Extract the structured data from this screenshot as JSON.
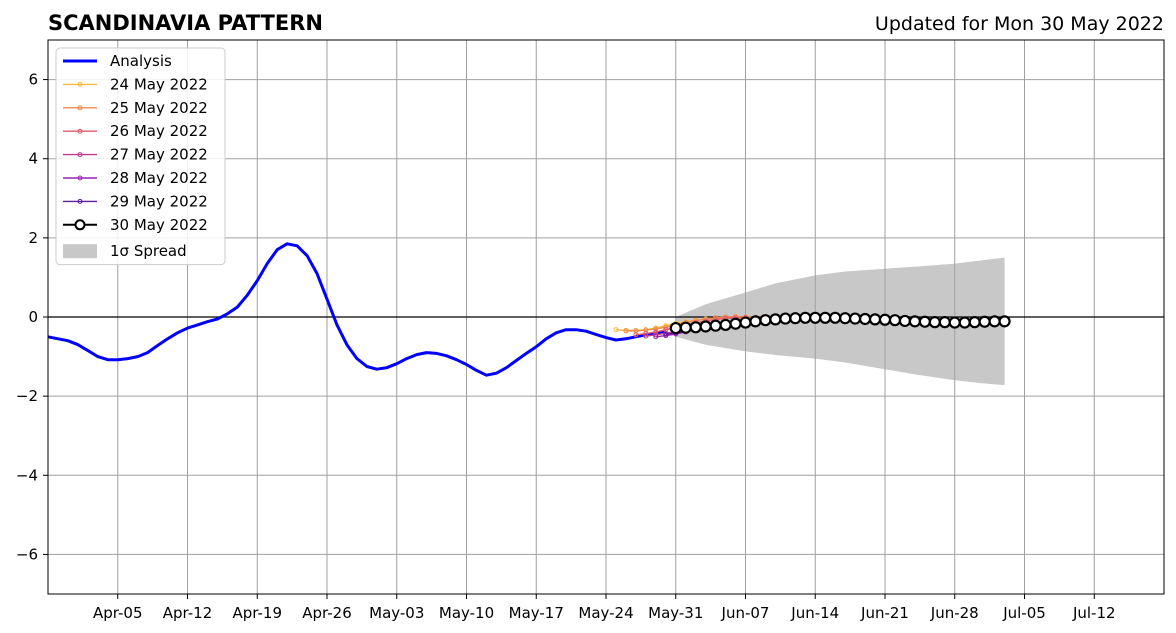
{
  "chart_data": {
    "type": "line",
    "title": "SCANDINAVIA PATTERN",
    "subtitle": "Updated for Mon 30 May 2022",
    "xlabel": "",
    "ylabel": "",
    "ylim": [
      -7,
      7
    ],
    "xlim": [
      "2022-03-29",
      "2022-07-19"
    ],
    "yticks": [
      -6,
      -4,
      -2,
      0,
      2,
      4,
      6
    ],
    "ytick_labels": [
      "−6",
      "−4",
      "−2",
      "0",
      "2",
      "4",
      "6"
    ],
    "xticks": [
      "2022-04-05",
      "2022-04-12",
      "2022-04-19",
      "2022-04-26",
      "2022-05-03",
      "2022-05-10",
      "2022-05-17",
      "2022-05-24",
      "2022-05-31",
      "2022-06-07",
      "2022-06-14",
      "2022-06-21",
      "2022-06-28",
      "2022-07-05",
      "2022-07-12"
    ],
    "xtick_labels": [
      "Apr-05",
      "Apr-12",
      "Apr-19",
      "Apr-26",
      "May-03",
      "May-10",
      "May-17",
      "May-24",
      "May-31",
      "Jun-07",
      "Jun-14",
      "Jun-21",
      "Jun-28",
      "Jul-05",
      "Jul-12"
    ],
    "grid": true,
    "legend_position": "top-left",
    "colors": {
      "analysis": "#0000ff",
      "grid": "#a0a0a0",
      "spread": "#c8c8c8",
      "zero_line": "#000000"
    },
    "analysis": {
      "name": "Analysis",
      "x": [
        "2022-03-29",
        "2022-03-30",
        "2022-03-31",
        "2022-04-01",
        "2022-04-02",
        "2022-04-03",
        "2022-04-04",
        "2022-04-05",
        "2022-04-06",
        "2022-04-07",
        "2022-04-08",
        "2022-04-09",
        "2022-04-10",
        "2022-04-11",
        "2022-04-12",
        "2022-04-13",
        "2022-04-14",
        "2022-04-15",
        "2022-04-16",
        "2022-04-17",
        "2022-04-18",
        "2022-04-19",
        "2022-04-20",
        "2022-04-21",
        "2022-04-22",
        "2022-04-23",
        "2022-04-24",
        "2022-04-25",
        "2022-04-26",
        "2022-04-27",
        "2022-04-28",
        "2022-04-29",
        "2022-04-30",
        "2022-05-01",
        "2022-05-02",
        "2022-05-03",
        "2022-05-04",
        "2022-05-05",
        "2022-05-06",
        "2022-05-07",
        "2022-05-08",
        "2022-05-09",
        "2022-05-10",
        "2022-05-11",
        "2022-05-12",
        "2022-05-13",
        "2022-05-14",
        "2022-05-15",
        "2022-05-16",
        "2022-05-17",
        "2022-05-18",
        "2022-05-19",
        "2022-05-20",
        "2022-05-21",
        "2022-05-22",
        "2022-05-23",
        "2022-05-24",
        "2022-05-25",
        "2022-05-26",
        "2022-05-27",
        "2022-05-28",
        "2022-05-29",
        "2022-05-30"
      ],
      "values": [
        -0.5,
        -0.55,
        -0.6,
        -0.7,
        -0.85,
        -1.0,
        -1.08,
        -1.08,
        -1.05,
        -1.0,
        -0.9,
        -0.72,
        -0.55,
        -0.4,
        -0.28,
        -0.2,
        -0.12,
        -0.05,
        0.08,
        0.25,
        0.55,
        0.92,
        1.35,
        1.7,
        1.85,
        1.8,
        1.55,
        1.1,
        0.45,
        -0.2,
        -0.7,
        -1.05,
        -1.25,
        -1.32,
        -1.28,
        -1.18,
        -1.05,
        -0.95,
        -0.9,
        -0.92,
        -0.98,
        -1.08,
        -1.2,
        -1.35,
        -1.47,
        -1.42,
        -1.28,
        -1.1,
        -0.92,
        -0.75,
        -0.55,
        -0.4,
        -0.32,
        -0.32,
        -0.36,
        -0.44,
        -0.52,
        -0.58,
        -0.55,
        -0.5,
        -0.45,
        -0.4,
        -0.38
      ]
    },
    "series": [
      {
        "name": "24 May 2022",
        "color": "#f6b93b",
        "x": [
          "2022-05-25",
          "2022-05-26",
          "2022-05-27",
          "2022-05-28",
          "2022-05-29",
          "2022-05-30",
          "2022-05-31",
          "2022-06-01",
          "2022-06-02",
          "2022-06-03",
          "2022-06-04",
          "2022-06-05",
          "2022-06-06",
          "2022-06-07",
          "2022-06-08",
          "2022-06-09",
          "2022-06-10",
          "2022-06-11",
          "2022-06-12",
          "2022-06-13",
          "2022-06-14",
          "2022-06-15",
          "2022-06-16",
          "2022-06-17",
          "2022-06-18",
          "2022-06-19",
          "2022-06-20",
          "2022-06-21",
          "2022-06-22",
          "2022-06-23",
          "2022-06-24",
          "2022-06-25",
          "2022-06-26",
          "2022-06-27",
          "2022-06-28"
        ],
        "values": [
          -0.32,
          -0.34,
          -0.34,
          -0.32,
          -0.28,
          -0.22,
          -0.16,
          -0.12,
          -0.08,
          -0.05,
          -0.03,
          -0.02,
          -0.02,
          -0.03,
          -0.04,
          -0.05,
          -0.06,
          -0.06,
          -0.06,
          -0.06,
          -0.06,
          -0.07,
          -0.08,
          -0.09,
          -0.1,
          -0.1,
          -0.11,
          -0.11,
          -0.12,
          -0.12,
          -0.13,
          -0.13,
          -0.13,
          -0.14,
          -0.14
        ]
      },
      {
        "name": "25 May 2022",
        "color": "#f08a4b",
        "x": [
          "2022-05-26",
          "2022-05-27",
          "2022-05-28",
          "2022-05-29",
          "2022-05-30",
          "2022-05-31",
          "2022-06-01",
          "2022-06-02",
          "2022-06-03",
          "2022-06-04",
          "2022-06-05",
          "2022-06-06",
          "2022-06-07",
          "2022-06-08",
          "2022-06-09",
          "2022-06-10",
          "2022-06-11",
          "2022-06-12",
          "2022-06-13",
          "2022-06-14",
          "2022-06-15",
          "2022-06-16",
          "2022-06-17",
          "2022-06-18",
          "2022-06-19",
          "2022-06-20",
          "2022-06-21",
          "2022-06-22",
          "2022-06-23",
          "2022-06-24",
          "2022-06-25",
          "2022-06-26",
          "2022-06-27",
          "2022-06-28",
          "2022-06-29"
        ],
        "values": [
          -0.35,
          -0.35,
          -0.33,
          -0.3,
          -0.26,
          -0.2,
          -0.14,
          -0.09,
          -0.05,
          -0.02,
          0.0,
          0.01,
          0.0,
          -0.01,
          -0.02,
          -0.03,
          -0.04,
          -0.04,
          -0.05,
          -0.05,
          -0.06,
          -0.07,
          -0.08,
          -0.09,
          -0.1,
          -0.1,
          -0.11,
          -0.12,
          -0.12,
          -0.13,
          -0.13,
          -0.14,
          -0.14,
          -0.15,
          -0.15
        ]
      },
      {
        "name": "26 May 2022",
        "color": "#e05a6e",
        "x": [
          "2022-05-27",
          "2022-05-28",
          "2022-05-29",
          "2022-05-30",
          "2022-05-31",
          "2022-06-01",
          "2022-06-02",
          "2022-06-03",
          "2022-06-04",
          "2022-06-05",
          "2022-06-06",
          "2022-06-07",
          "2022-06-08",
          "2022-06-09",
          "2022-06-10",
          "2022-06-11",
          "2022-06-12",
          "2022-06-13",
          "2022-06-14",
          "2022-06-15",
          "2022-06-16",
          "2022-06-17",
          "2022-06-18",
          "2022-06-19",
          "2022-06-20",
          "2022-06-21",
          "2022-06-22",
          "2022-06-23",
          "2022-06-24",
          "2022-06-25",
          "2022-06-26",
          "2022-06-27",
          "2022-06-28",
          "2022-06-29",
          "2022-06-30"
        ],
        "values": [
          -0.45,
          -0.42,
          -0.38,
          -0.32,
          -0.26,
          -0.2,
          -0.15,
          -0.1,
          -0.06,
          -0.03,
          -0.02,
          -0.02,
          -0.03,
          -0.04,
          -0.05,
          -0.05,
          -0.06,
          -0.06,
          -0.07,
          -0.08,
          -0.09,
          -0.1,
          -0.11,
          -0.12,
          -0.13,
          -0.14,
          -0.15,
          -0.15,
          -0.16,
          -0.16,
          -0.16,
          -0.17,
          -0.17,
          -0.17,
          -0.17
        ]
      },
      {
        "name": "27 May 2022",
        "color": "#c0398c",
        "x": [
          "2022-05-28",
          "2022-05-29",
          "2022-05-30",
          "2022-05-31",
          "2022-06-01",
          "2022-06-02",
          "2022-06-03",
          "2022-06-04",
          "2022-06-05",
          "2022-06-06",
          "2022-06-07",
          "2022-06-08",
          "2022-06-09",
          "2022-06-10",
          "2022-06-11",
          "2022-06-12",
          "2022-06-13",
          "2022-06-14",
          "2022-06-15",
          "2022-06-16",
          "2022-06-17",
          "2022-06-18",
          "2022-06-19",
          "2022-06-20",
          "2022-06-21",
          "2022-06-22",
          "2022-06-23",
          "2022-06-24",
          "2022-06-25",
          "2022-06-26",
          "2022-06-27",
          "2022-06-28",
          "2022-06-29",
          "2022-06-30",
          "2022-07-01"
        ],
        "values": [
          -0.48,
          -0.45,
          -0.41,
          -0.37,
          -0.32,
          -0.27,
          -0.22,
          -0.17,
          -0.13,
          -0.1,
          -0.08,
          -0.07,
          -0.06,
          -0.05,
          -0.05,
          -0.05,
          -0.05,
          -0.06,
          -0.07,
          -0.08,
          -0.09,
          -0.1,
          -0.11,
          -0.12,
          -0.13,
          -0.14,
          -0.15,
          -0.16,
          -0.16,
          -0.17,
          -0.17,
          -0.17,
          -0.17,
          -0.16,
          -0.16
        ]
      },
      {
        "name": "28 May 2022",
        "color": "#9b20b0",
        "x": [
          "2022-05-29",
          "2022-05-30",
          "2022-05-31",
          "2022-06-01",
          "2022-06-02",
          "2022-06-03",
          "2022-06-04",
          "2022-06-05",
          "2022-06-06",
          "2022-06-07",
          "2022-06-08",
          "2022-06-09",
          "2022-06-10",
          "2022-06-11",
          "2022-06-12",
          "2022-06-13",
          "2022-06-14",
          "2022-06-15",
          "2022-06-16",
          "2022-06-17",
          "2022-06-18",
          "2022-06-19",
          "2022-06-20",
          "2022-06-21",
          "2022-06-22",
          "2022-06-23",
          "2022-06-24",
          "2022-06-25",
          "2022-06-26",
          "2022-06-27",
          "2022-06-28",
          "2022-06-29",
          "2022-06-30",
          "2022-07-01",
          "2022-07-02"
        ],
        "values": [
          -0.5,
          -0.47,
          -0.43,
          -0.38,
          -0.33,
          -0.28,
          -0.23,
          -0.19,
          -0.15,
          -0.12,
          -0.1,
          -0.08,
          -0.07,
          -0.06,
          -0.05,
          -0.05,
          -0.05,
          -0.06,
          -0.07,
          -0.08,
          -0.09,
          -0.1,
          -0.11,
          -0.12,
          -0.13,
          -0.14,
          -0.14,
          -0.15,
          -0.15,
          -0.15,
          -0.15,
          -0.14,
          -0.14,
          -0.13,
          -0.13
        ]
      },
      {
        "name": "29 May 2022",
        "color": "#5a1a9e",
        "x": [
          "2022-05-30",
          "2022-05-31",
          "2022-06-01",
          "2022-06-02",
          "2022-06-03",
          "2022-06-04",
          "2022-06-05",
          "2022-06-06",
          "2022-06-07",
          "2022-06-08",
          "2022-06-09",
          "2022-06-10",
          "2022-06-11",
          "2022-06-12",
          "2022-06-13",
          "2022-06-14",
          "2022-06-15",
          "2022-06-16",
          "2022-06-17",
          "2022-06-18",
          "2022-06-19",
          "2022-06-20",
          "2022-06-21",
          "2022-06-22",
          "2022-06-23",
          "2022-06-24",
          "2022-06-25",
          "2022-06-26",
          "2022-06-27",
          "2022-06-28",
          "2022-06-29",
          "2022-06-30",
          "2022-07-01",
          "2022-07-02",
          "2022-07-03"
        ],
        "values": [
          -0.44,
          -0.4,
          -0.36,
          -0.32,
          -0.28,
          -0.24,
          -0.2,
          -0.17,
          -0.14,
          -0.11,
          -0.09,
          -0.07,
          -0.05,
          -0.04,
          -0.03,
          -0.03,
          -0.03,
          -0.04,
          -0.05,
          -0.06,
          -0.07,
          -0.08,
          -0.09,
          -0.1,
          -0.11,
          -0.12,
          -0.13,
          -0.13,
          -0.14,
          -0.14,
          -0.14,
          -0.13,
          -0.13,
          -0.12,
          -0.12
        ]
      },
      {
        "name": "30 May 2022",
        "color": "#000000",
        "highlight": true,
        "x": [
          "2022-05-31",
          "2022-06-01",
          "2022-06-02",
          "2022-06-03",
          "2022-06-04",
          "2022-06-05",
          "2022-06-06",
          "2022-06-07",
          "2022-06-08",
          "2022-06-09",
          "2022-06-10",
          "2022-06-11",
          "2022-06-12",
          "2022-06-13",
          "2022-06-14",
          "2022-06-15",
          "2022-06-16",
          "2022-06-17",
          "2022-06-18",
          "2022-06-19",
          "2022-06-20",
          "2022-06-21",
          "2022-06-22",
          "2022-06-23",
          "2022-06-24",
          "2022-06-25",
          "2022-06-26",
          "2022-06-27",
          "2022-06-28",
          "2022-06-29",
          "2022-06-30",
          "2022-07-01",
          "2022-07-02",
          "2022-07-03"
        ],
        "values": [
          -0.28,
          -0.27,
          -0.26,
          -0.24,
          -0.22,
          -0.2,
          -0.17,
          -0.14,
          -0.11,
          -0.08,
          -0.06,
          -0.04,
          -0.03,
          -0.02,
          -0.02,
          -0.02,
          -0.02,
          -0.03,
          -0.04,
          -0.05,
          -0.06,
          -0.07,
          -0.08,
          -0.1,
          -0.11,
          -0.12,
          -0.13,
          -0.13,
          -0.14,
          -0.14,
          -0.13,
          -0.12,
          -0.11,
          -0.11
        ]
      }
    ],
    "spread": {
      "name": "1σ Spread",
      "x": [
        "2022-05-31",
        "2022-06-03",
        "2022-06-07",
        "2022-06-10",
        "2022-06-14",
        "2022-06-17",
        "2022-06-21",
        "2022-06-24",
        "2022-06-28",
        "2022-07-01",
        "2022-07-03"
      ],
      "upper": [
        0.0,
        0.32,
        0.62,
        0.85,
        1.05,
        1.15,
        1.22,
        1.27,
        1.35,
        1.44,
        1.5
      ],
      "lower": [
        -0.5,
        -0.7,
        -0.87,
        -0.96,
        -1.05,
        -1.15,
        -1.32,
        -1.45,
        -1.6,
        -1.68,
        -1.72
      ]
    }
  }
}
